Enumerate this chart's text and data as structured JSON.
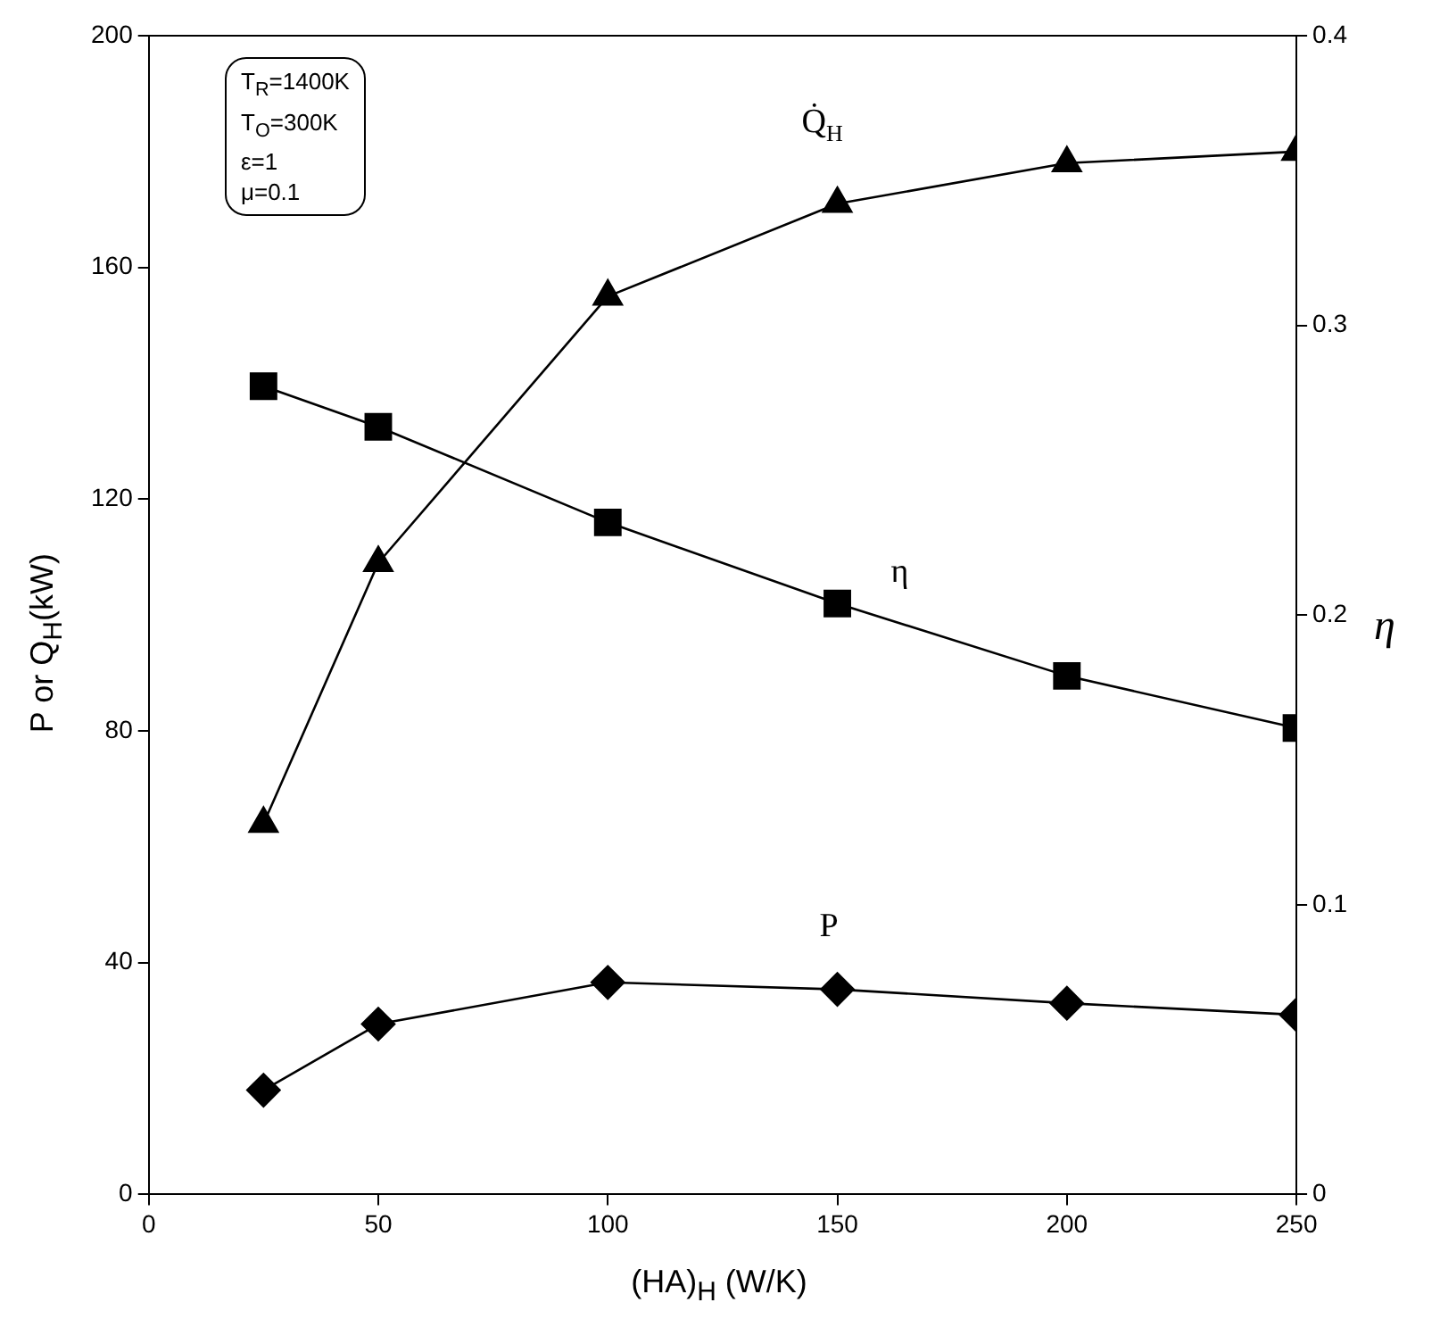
{
  "chart_data": {
    "type": "line",
    "xlabel": "(HA)$_{H}$ (W/K)",
    "ylabel": "P or Q$_{H}$(kW)",
    "y2label": "η",
    "x": [
      25,
      50,
      100,
      150,
      200,
      250
    ],
    "xlim": [
      0,
      250
    ],
    "xticks": [
      0,
      50,
      100,
      150,
      200,
      250
    ],
    "ylim": [
      0,
      200
    ],
    "yticks": [
      0,
      40,
      80,
      120,
      160,
      200
    ],
    "y2lim": [
      0,
      0.4
    ],
    "y2ticks": [
      0,
      0.1,
      0.2,
      0.3,
      0.4
    ],
    "grid": false,
    "legend": false,
    "line_style": "solid",
    "series": [
      {
        "name": "Q̇$_{H}$",
        "color": "#000000",
        "marker": "triangle",
        "values": [
          64,
          109,
          155,
          171,
          178,
          180
        ]
      },
      {
        "name": "η",
        "color": "#000000",
        "marker": "square",
        "axis": "y2",
        "values": [
          0.279,
          0.265,
          0.232,
          0.204,
          0.179,
          0.161
        ]
      },
      {
        "name": "P",
        "color": "#000000",
        "marker": "diamond",
        "values": [
          18,
          29.4,
          36.6,
          35.4,
          33,
          31
        ]
      }
    ],
    "annotations": [
      "T$_{R}$=1400K",
      "T$_{O}$=300K",
      "ε=1",
      "μ=0.1"
    ]
  }
}
